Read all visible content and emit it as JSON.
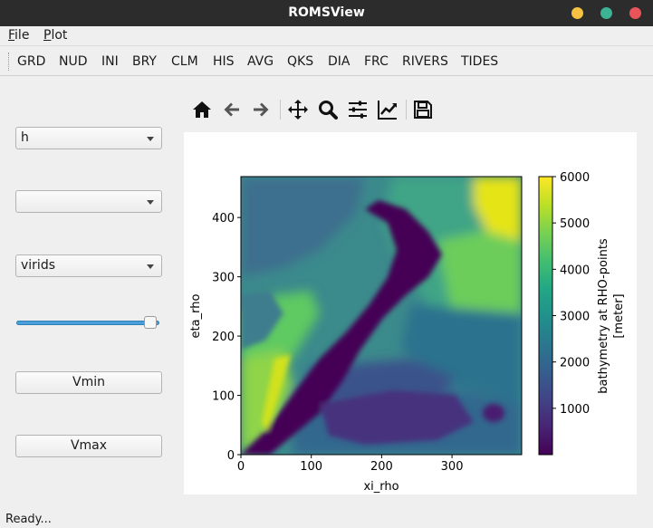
{
  "window": {
    "title": "ROMSView"
  },
  "menu": {
    "file": "ile",
    "file_key": "F",
    "plot": "lot",
    "plot_key": "P"
  },
  "tabs": [
    "GRD",
    "NUD",
    "INI",
    "BRY",
    "CLM",
    "HIS",
    "AVG",
    "QKS",
    "DIA",
    "FRC",
    "RIVERS",
    "TIDES"
  ],
  "sidebar": {
    "variable_combo": "h",
    "second_combo": "",
    "colormap_combo": "virids",
    "slider_level": 0.95,
    "vmin_button": "Vmin",
    "vmax_button": "Vmax"
  },
  "toolbar": [
    "home-icon",
    "back-arrow-icon",
    "forward-arrow-icon",
    "pan-icon",
    "zoom-icon",
    "configure-subplots-icon",
    "edit-axis-icon",
    "save-icon"
  ],
  "chart_data": {
    "type": "heatmap",
    "xlabel": "xi_rho",
    "ylabel": "eta_rho",
    "x_ticks": [
      "0",
      "100",
      "200",
      "300"
    ],
    "y_ticks": [
      "0",
      "100",
      "200",
      "300",
      "400"
    ],
    "xlim": [
      0,
      399
    ],
    "ylim": [
      0,
      469
    ],
    "colorbar_label": "bathymetry at RHO-points",
    "colorbar_unit": "[meter]",
    "colorbar_ticks": [
      "1000",
      "2000",
      "3000",
      "4000",
      "5000",
      "6000"
    ],
    "colorbar_range": [
      0,
      6000
    ],
    "colormap": "viridis"
  },
  "status": {
    "text": "Ready..."
  }
}
